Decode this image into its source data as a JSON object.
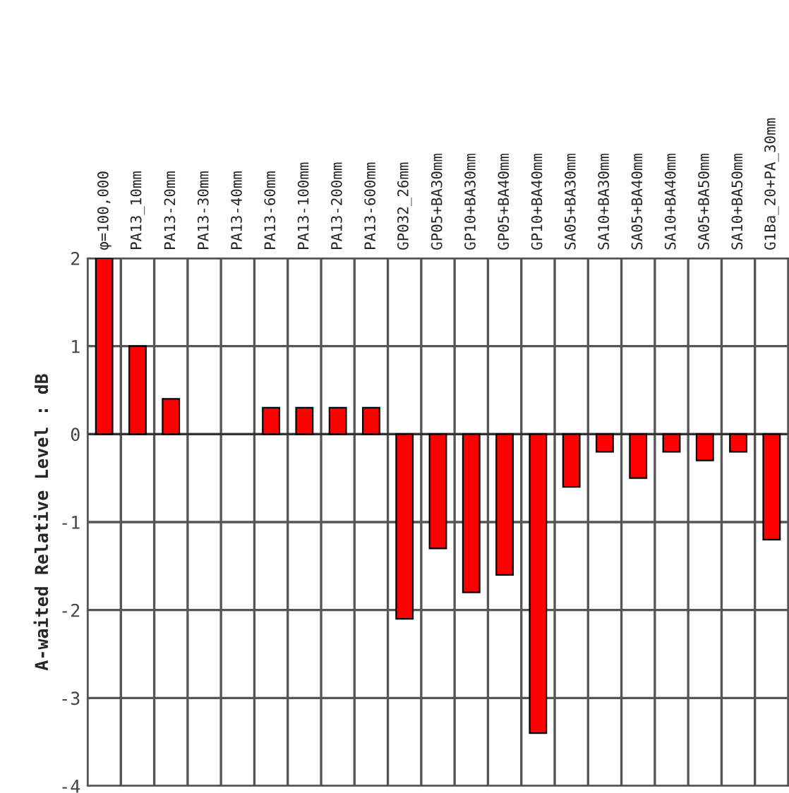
{
  "chart_data": {
    "type": "bar",
    "ylabel": "A-waited Relative Level : dB",
    "categories": [
      "φ=100,000",
      "PA13_10mm",
      "PA13-20mm",
      "PA13-30mm",
      "PA13-40mm",
      "PA13-60mm",
      "PA13-100mm",
      "PA13-200mm",
      "PA13-600mm",
      "GP032_26mm",
      "GP05+BA30mm",
      "GP10+BA30mm",
      "GP05+BA40mm",
      "GP10+BA40mm",
      "SA05+BA30mm",
      "SA10+BA30mm",
      "SA05+BA40mm",
      "SA10+BA40mm",
      "SA05+BA50mm",
      "SA10+BA50mm",
      "G1Ba_20+PA_30mm"
    ],
    "values": [
      2,
      1,
      0.4,
      0,
      0,
      0.3,
      0.3,
      0.3,
      0.3,
      -2.1,
      -1.3,
      -1.8,
      -1.6,
      -3.4,
      -0.6,
      -0.2,
      -0.5,
      -0.2,
      -0.3,
      -0.2,
      -1.2
    ],
    "color": "#ff0000",
    "ylim": [
      -4,
      2
    ],
    "yticks": [
      -4,
      -3,
      -2,
      -1,
      0,
      1,
      2
    ],
    "grid": true
  }
}
